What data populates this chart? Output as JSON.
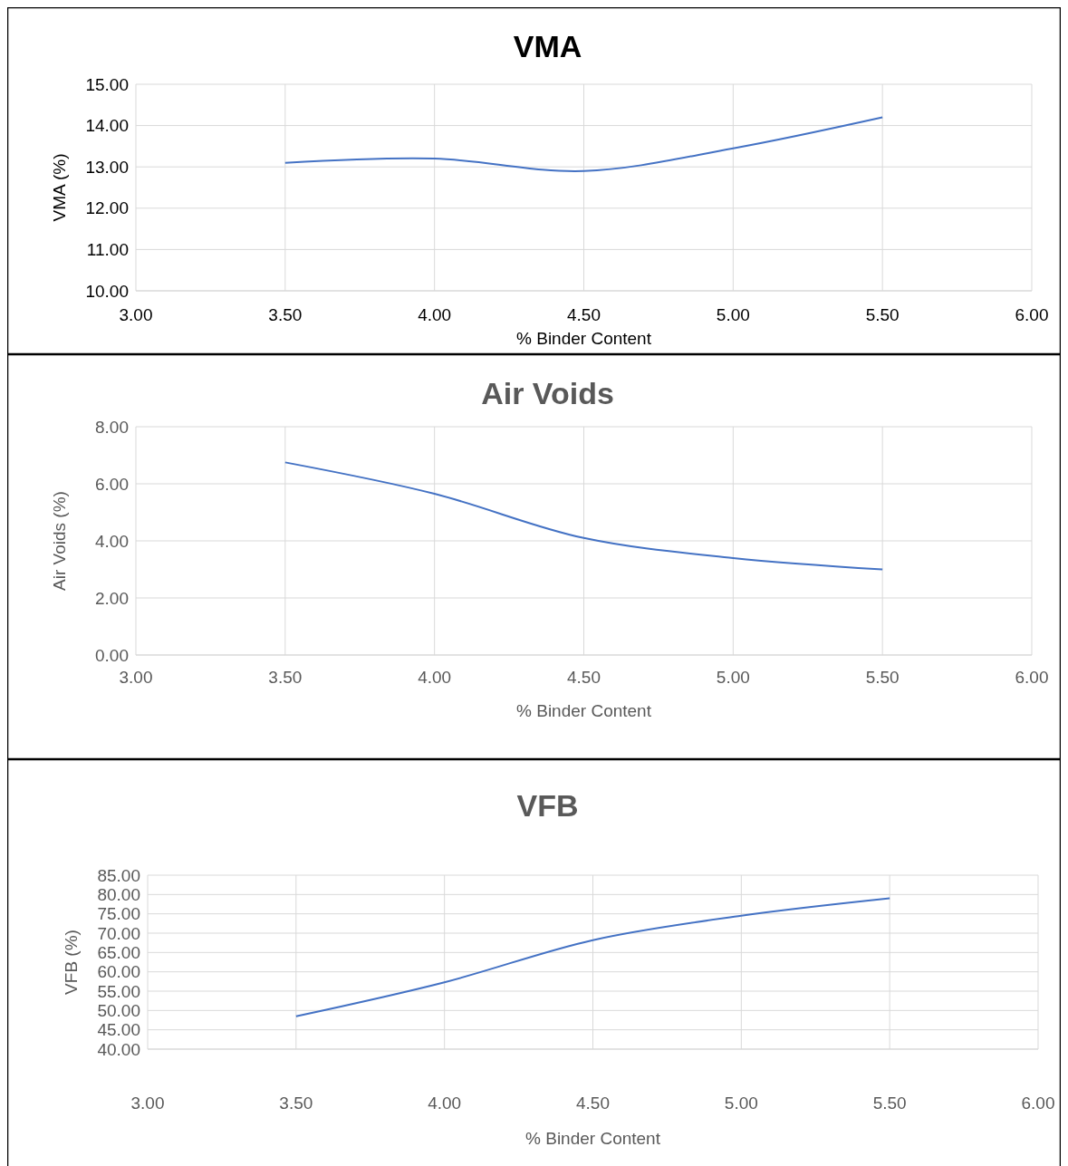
{
  "chart_data": [
    {
      "type": "line",
      "title": "VMA",
      "xlabel": "% Binder Content",
      "ylabel": "VMA (%)",
      "x": [
        3.5,
        4.0,
        4.5,
        5.0,
        5.5
      ],
      "series": [
        {
          "color": "#4472c4",
          "values": [
            13.1,
            13.2,
            12.9,
            13.45,
            14.2
          ]
        }
      ],
      "xlim": [
        3,
        6
      ],
      "xticks": [
        {
          "value": 3,
          "label": "3.00"
        },
        {
          "value": 3.5,
          "label": "3.50"
        },
        {
          "value": 4,
          "label": "4.00"
        },
        {
          "value": 4.5,
          "label": "4.50"
        },
        {
          "value": 5,
          "label": "5.00"
        },
        {
          "value": 5.5,
          "label": "5.50"
        },
        {
          "value": 6,
          "label": "6.00"
        }
      ],
      "ylim": [
        10,
        15
      ],
      "yticks": [
        {
          "value": 10,
          "label": "10.00"
        },
        {
          "value": 11,
          "label": "11.00"
        },
        {
          "value": 12,
          "label": "12.00"
        },
        {
          "value": 13,
          "label": "13.00"
        },
        {
          "value": 14,
          "label": "14.00"
        },
        {
          "value": 15,
          "label": "15.00"
        }
      ],
      "grid": true
    },
    {
      "type": "line",
      "title": "Air Voids",
      "xlabel": "% Binder Content",
      "ylabel": "Air Voids (%)",
      "x": [
        3.5,
        4.0,
        4.5,
        5.0,
        5.5
      ],
      "series": [
        {
          "color": "#4472c4",
          "values": [
            6.75,
            5.65,
            4.1,
            3.4,
            3.0
          ]
        }
      ],
      "xlim": [
        3,
        6
      ],
      "xticks": [
        {
          "value": 3,
          "label": "3.00"
        },
        {
          "value": 3.5,
          "label": "3.50"
        },
        {
          "value": 4,
          "label": "4.00"
        },
        {
          "value": 4.5,
          "label": "4.50"
        },
        {
          "value": 5,
          "label": "5.00"
        },
        {
          "value": 5.5,
          "label": "5.50"
        },
        {
          "value": 6,
          "label": "6.00"
        }
      ],
      "ylim": [
        0,
        8
      ],
      "yticks": [
        {
          "value": 0,
          "label": "0.00"
        },
        {
          "value": 2,
          "label": "2.00"
        },
        {
          "value": 4,
          "label": "4.00"
        },
        {
          "value": 6,
          "label": "6.00"
        },
        {
          "value": 8,
          "label": "8.00"
        }
      ],
      "grid": true
    },
    {
      "type": "line",
      "title": "VFB",
      "xlabel": "% Binder Content",
      "ylabel": "VFB (%)",
      "x": [
        3.5,
        4.0,
        4.5,
        5.0,
        5.5
      ],
      "series": [
        {
          "color": "#4472c4",
          "values": [
            48.5,
            57.3,
            68.2,
            74.5,
            79.0
          ]
        }
      ],
      "xlim": [
        3,
        6
      ],
      "xticks": [
        {
          "value": 3,
          "label": "3.00"
        },
        {
          "value": 3.5,
          "label": "3.50"
        },
        {
          "value": 4,
          "label": "4.00"
        },
        {
          "value": 4.5,
          "label": "4.50"
        },
        {
          "value": 5,
          "label": "5.00"
        },
        {
          "value": 5.5,
          "label": "5.50"
        },
        {
          "value": 6,
          "label": "6.00"
        }
      ],
      "ylim": [
        40,
        85
      ],
      "yticks": [
        {
          "value": 40,
          "label": "40.00"
        },
        {
          "value": 45,
          "label": "45.00"
        },
        {
          "value": 50,
          "label": "50.00"
        },
        {
          "value": 55,
          "label": "55.00"
        },
        {
          "value": 60,
          "label": "60.00"
        },
        {
          "value": 65,
          "label": "65.00"
        },
        {
          "value": 70,
          "label": "70.00"
        },
        {
          "value": 75,
          "label": "75.00"
        },
        {
          "value": 80,
          "label": "80.00"
        },
        {
          "value": 85,
          "label": "85.00"
        }
      ],
      "grid": true
    }
  ]
}
